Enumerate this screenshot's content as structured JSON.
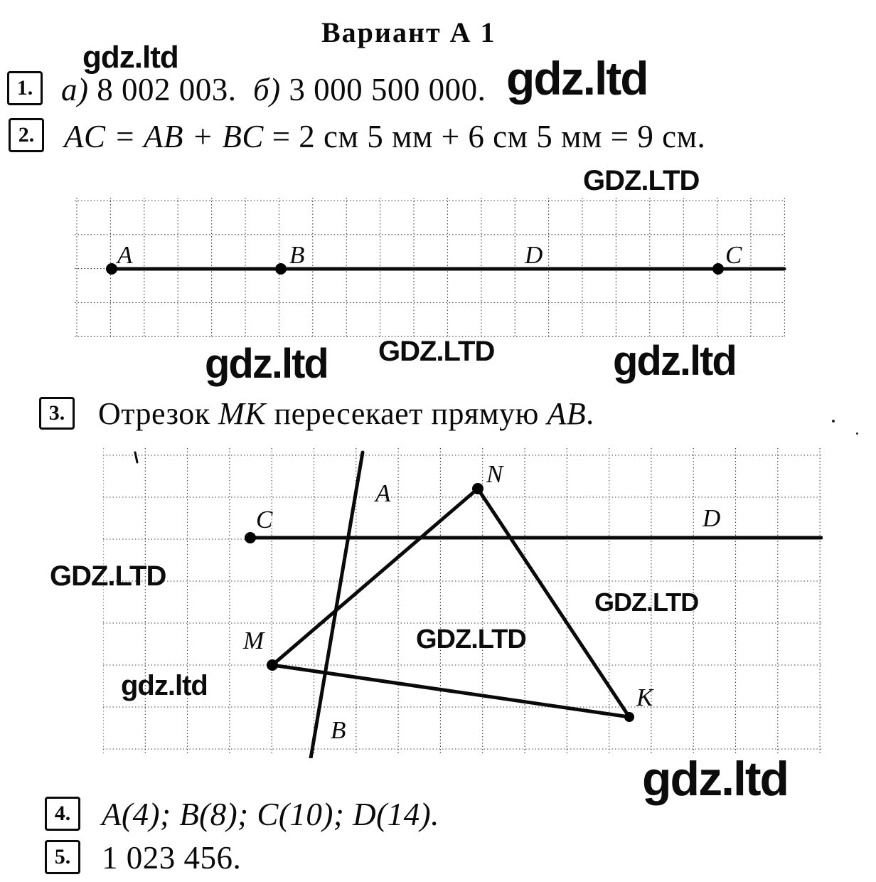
{
  "page": {
    "title": "Вариант А 1"
  },
  "watermarks": {
    "top_left": "gdz.ltd",
    "p1_right": "gdz.ltd",
    "above_d1": "GDZ.LTD",
    "mid_caps": "GDZ.LTD",
    "mid_left": "gdz.ltd",
    "mid_right": "gdz.ltd",
    "d2_left": "GDZ.LTD",
    "d2_right": "GDZ.LTD",
    "d2_center": "GDZ.LTD",
    "d2_small": "gdz.ltd",
    "bottom_right": "gdz.ltd"
  },
  "problems": {
    "p1": {
      "num": "1.",
      "label_a": "а) ",
      "num_a": "8 002 003.",
      "label_b": "  б) ",
      "num_b": "3 000 500 000."
    },
    "p2": {
      "num": "2.",
      "vars": "AC = AB + BC",
      "rest": " = 2 см 5 мм + 6 см 5 мм = 9 см."
    },
    "p3": {
      "num": "3.",
      "part1": "Отрезок ",
      "seg": "MK",
      "part2": " пересекает прямую ",
      "line": "AB",
      "end": "."
    },
    "p4": {
      "num": "4.",
      "text": "A(4); B(8); C(10); D(14)."
    },
    "p5": {
      "num": "5.",
      "text": "1 023 456."
    }
  },
  "diagram1": {
    "labels": {
      "a": "A",
      "b": "B",
      "d": "D",
      "c": "C"
    }
  },
  "diagram2": {
    "labels": {
      "c": "C",
      "d": "D",
      "a": "A",
      "b": "B",
      "m": "M",
      "n": "N",
      "k": "K"
    }
  }
}
